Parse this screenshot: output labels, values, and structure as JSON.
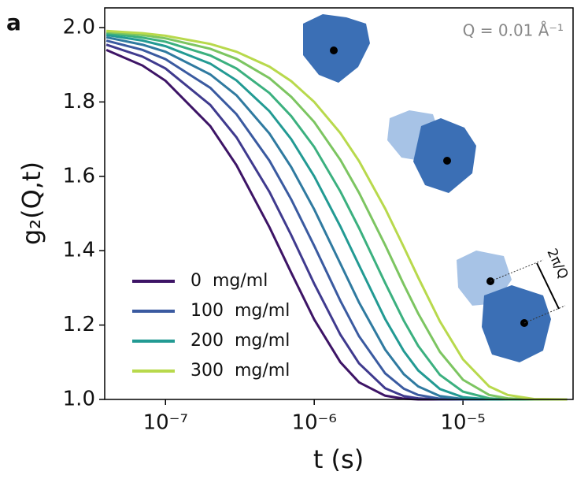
{
  "chart_data": {
    "type": "line",
    "panel_label": "a",
    "annotation": "Q = 0.01 Å⁻¹",
    "arrow_label": "2π/Q",
    "xlabel": "t (s)",
    "ylabel": "g₂(Q,t)",
    "xscale": "log",
    "xlim": [
      3.9e-08,
      5.5e-05
    ],
    "ylim": [
      1,
      2.053
    ],
    "xticks": [
      {
        "value": 1e-07,
        "label": "10⁻⁷"
      },
      {
        "value": 1e-06,
        "label": "10⁻⁶"
      },
      {
        "value": 1e-05,
        "label": "10⁻⁵"
      }
    ],
    "yticks": [
      {
        "value": 1,
        "label": "1.0"
      },
      1.2,
      1.4,
      1.6,
      1.8,
      {
        "value": 2,
        "label": "2.0"
      }
    ],
    "legend": "lower left",
    "x": [
      4e-08,
      7e-08,
      1e-07,
      2e-07,
      3e-07,
      5e-07,
      7e-07,
      1e-06,
      1.5e-06,
      2e-06,
      3e-06,
      4e-06,
      5e-06,
      7e-06,
      1e-05,
      1.5e-05,
      2e-05,
      3e-05,
      5e-05
    ],
    "series": [
      {
        "name": "0  mg/ml",
        "color": "#3d1466",
        "values": [
          1.94,
          1.898,
          1.857,
          1.735,
          1.63,
          1.463,
          1.341,
          1.215,
          1.1,
          1.046,
          1.01,
          1.002,
          1.0,
          1,
          1,
          1,
          1,
          1,
          1
        ]
      },
      {
        "color": "#3f3a8e",
        "values": [
          1.954,
          1.922,
          1.89,
          1.792,
          1.705,
          1.558,
          1.442,
          1.311,
          1.174,
          1.097,
          1.03,
          1.009,
          1.003,
          1.0,
          1,
          1,
          1,
          1,
          1
        ]
      },
      {
        "name": "100  mg/ml",
        "color": "#3a5aa0",
        "values": [
          1.965,
          1.94,
          1.915,
          1.838,
          1.767,
          1.642,
          1.538,
          1.413,
          1.265,
          1.17,
          1.07,
          1.029,
          1.012,
          1.002,
          1.0,
          1,
          1,
          1,
          1
        ]
      },
      {
        "color": "#2f7aa0",
        "values": [
          1.974,
          1.954,
          1.935,
          1.874,
          1.818,
          1.715,
          1.625,
          1.511,
          1.365,
          1.261,
          1.134,
          1.068,
          1.035,
          1.009,
          1.001,
          1,
          1,
          1,
          1
        ]
      },
      {
        "name": "200  mg/ml",
        "color": "#229a93",
        "values": [
          1.98,
          1.965,
          1.95,
          1.903,
          1.858,
          1.775,
          1.7,
          1.6,
          1.465,
          1.361,
          1.216,
          1.13,
          1.078,
          1.028,
          1.006,
          1.0,
          1,
          1,
          1
        ]
      },
      {
        "color": "#3bb07f",
        "values": [
          1.985,
          1.973,
          1.962,
          1.925,
          1.89,
          1.824,
          1.762,
          1.679,
          1.559,
          1.461,
          1.313,
          1.212,
          1.144,
          1.066,
          1.021,
          1.003,
          1.0,
          1,
          1
        ]
      },
      {
        "color": "#7cc561",
        "values": [
          1.988,
          1.98,
          1.971,
          1.943,
          1.916,
          1.864,
          1.814,
          1.746,
          1.644,
          1.556,
          1.415,
          1.309,
          1.231,
          1.128,
          1.053,
          1.012,
          1.003,
          1.0,
          1
        ]
      },
      {
        "name": "300  mg/ml",
        "color": "#b8d94c",
        "values": [
          1.991,
          1.985,
          1.978,
          1.956,
          1.935,
          1.895,
          1.856,
          1.8,
          1.716,
          1.641,
          1.513,
          1.41,
          1.328,
          1.21,
          1.108,
          1.035,
          1.012,
          1.001,
          1.0
        ]
      }
    ]
  }
}
